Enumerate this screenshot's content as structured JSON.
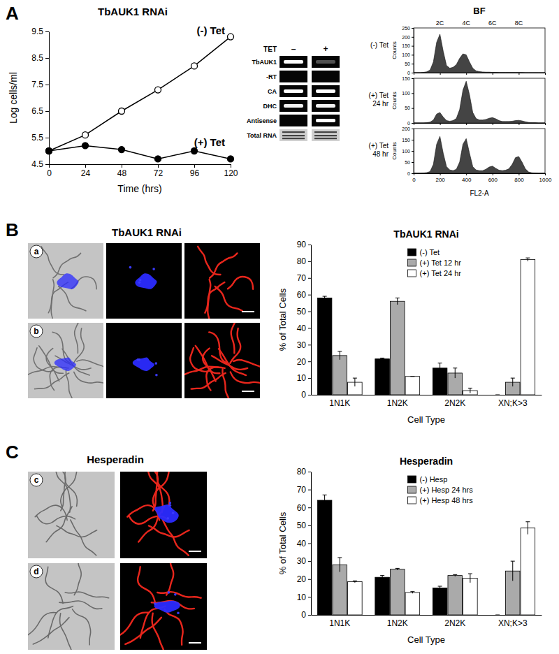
{
  "panels": [
    "A",
    "B",
    "C"
  ],
  "gel": {
    "header": "TET",
    "lanes": [
      "–",
      "+"
    ],
    "rows": [
      "TbAUK1",
      "-RT",
      "CA",
      "DHC",
      "Antisense",
      "Total RNA"
    ]
  },
  "micrographs": [
    {
      "title": "TbAUK1 RNAi",
      "labels": [
        "a",
        "b"
      ]
    },
    {
      "title": "Hesperadin",
      "labels": [
        "c",
        "d"
      ]
    }
  ],
  "chart_data": [
    {
      "type": "line",
      "title": "TbAUK1 RNAi",
      "xlabel": "Time (hrs)",
      "ylabel": "Log cells/ml",
      "x": [
        0,
        24,
        48,
        72,
        96,
        120
      ],
      "series": [
        {
          "name": "(-) Tet",
          "color": "#000000",
          "marker": "open-circle",
          "values": [
            5.0,
            5.6,
            6.5,
            7.3,
            8.2,
            9.3
          ]
        },
        {
          "name": "(+) Tet",
          "color": "#000000",
          "marker": "circle",
          "values": [
            5.0,
            5.2,
            5.05,
            4.7,
            5.0,
            4.7
          ]
        }
      ],
      "xlim": [
        0,
        120
      ],
      "xticks": [
        0,
        24,
        48,
        72,
        96,
        120
      ],
      "ylim": [
        4.5,
        9.5
      ],
      "yticks": [
        4.5,
        5.5,
        6.5,
        7.5,
        8.5,
        9.5
      ]
    },
    {
      "type": "area",
      "title": "BF",
      "ylabel": "Counts",
      "tick_labels": "y",
      "annotations": [
        {
          "text": "2C",
          "x": 200
        },
        {
          "text": "4C",
          "x": 400
        },
        {
          "text": "6C",
          "x": 600
        },
        {
          "text": "8C",
          "x": 800
        }
      ],
      "x": [
        0,
        25,
        50,
        75,
        100,
        125,
        150,
        175,
        200,
        225,
        250,
        275,
        300,
        325,
        350,
        375,
        400,
        425,
        450,
        475,
        500,
        525,
        550,
        575,
        600,
        625,
        650,
        675,
        700,
        725,
        750,
        775,
        800,
        825,
        850,
        875,
        900,
        925,
        950,
        975,
        1000
      ],
      "series": [
        {
          "name": "(-) Tet",
          "color": "#444444",
          "values": [
            0,
            0,
            0,
            2,
            5,
            15,
            60,
            170,
            215,
            120,
            40,
            25,
            30,
            45,
            80,
            105,
            100,
            60,
            25,
            10,
            6,
            4,
            3,
            3,
            2,
            2,
            1,
            1,
            1,
            1,
            1,
            1,
            1,
            1,
            0,
            0,
            0,
            0,
            0,
            0,
            0
          ]
        }
      ],
      "xlim": [
        0,
        1000
      ],
      "xticks": [
        0,
        200,
        400,
        600,
        800,
        1000
      ],
      "ylim": [
        0,
        250
      ],
      "yticks": [
        0,
        50,
        100,
        150,
        200,
        250
      ]
    },
    {
      "type": "area",
      "ylabel": "Counts",
      "tick_labels": "y",
      "x": [
        0,
        25,
        50,
        75,
        100,
        125,
        150,
        175,
        200,
        225,
        250,
        275,
        300,
        325,
        350,
        375,
        400,
        425,
        450,
        475,
        500,
        525,
        550,
        575,
        600,
        625,
        650,
        675,
        700,
        725,
        750,
        775,
        800,
        825,
        850,
        875,
        900,
        925,
        950,
        975,
        1000
      ],
      "series": [
        {
          "name": "(+) Tet 24 hr",
          "color": "#444444",
          "values": [
            0,
            0,
            0,
            0,
            1,
            3,
            10,
            30,
            35,
            20,
            8,
            6,
            8,
            15,
            45,
            110,
            140,
            95,
            35,
            15,
            10,
            10,
            12,
            16,
            18,
            14,
            8,
            5,
            5,
            5,
            6,
            8,
            9,
            7,
            4,
            2,
            1,
            1,
            0,
            0,
            0
          ]
        }
      ],
      "xlim": [
        0,
        1000
      ],
      "xticks": [
        0,
        200,
        400,
        600,
        800,
        1000
      ],
      "ylim": [
        0,
        150
      ],
      "yticks": [
        0,
        50,
        100,
        150
      ]
    },
    {
      "type": "area",
      "ylabel": "Counts",
      "xlabel": "FL2-A",
      "x": [
        0,
        25,
        50,
        75,
        100,
        125,
        150,
        175,
        200,
        225,
        250,
        275,
        300,
        325,
        350,
        375,
        400,
        425,
        450,
        475,
        500,
        525,
        550,
        575,
        600,
        625,
        650,
        675,
        700,
        725,
        750,
        775,
        800,
        825,
        850,
        875,
        900,
        925,
        950,
        975,
        1000
      ],
      "series": [
        {
          "name": "(+) Tet 48 hr",
          "color": "#444444",
          "values": [
            0,
            0,
            0,
            1,
            3,
            8,
            40,
            130,
            165,
            90,
            30,
            15,
            12,
            18,
            50,
            130,
            155,
            90,
            30,
            15,
            12,
            12,
            18,
            28,
            32,
            22,
            14,
            12,
            14,
            20,
            40,
            70,
            75,
            50,
            20,
            6,
            2,
            1,
            0,
            0,
            0
          ]
        }
      ],
      "xlim": [
        0,
        1000
      ],
      "xticks": [
        0,
        200,
        400,
        600,
        800,
        1000
      ],
      "ylim": [
        0,
        200
      ],
      "yticks": [
        0,
        50,
        100,
        150,
        200
      ]
    },
    {
      "type": "bar",
      "title": "TbAUK1 RNAi",
      "xlabel": "Cell Type",
      "ylabel": "% of Total Cells",
      "legend": "top",
      "categories": [
        "1N1K",
        "1N2K",
        "2N2K",
        "XN;K>3"
      ],
      "series": [
        {
          "name": "(-) Tet",
          "color": "#000000",
          "values": [
            58,
            21.5,
            16,
            0
          ],
          "errors": [
            1,
            0.5,
            3,
            0
          ]
        },
        {
          "name": "(+) Tet 12 hr",
          "color": "#aaaaaa",
          "values": [
            23.5,
            56,
            13,
            7.5
          ],
          "errors": [
            2.5,
            2,
            3,
            2.5
          ]
        },
        {
          "name": "(+) Tet 24 hr",
          "color": "#ffffff",
          "values": [
            7.5,
            11,
            2.5,
            81
          ],
          "errors": [
            2.5,
            0,
            1.5,
            1
          ]
        }
      ],
      "ylim": [
        0,
        90
      ],
      "yticks": [
        0,
        10,
        20,
        30,
        40,
        50,
        60,
        70,
        80,
        90
      ]
    },
    {
      "type": "bar",
      "title": "Hesperadin",
      "xlabel": "Cell Type",
      "ylabel": "% of Total Cells",
      "legend": "top",
      "categories": [
        "1N1K",
        "1N2K",
        "2N2K",
        "XN;K>3"
      ],
      "series": [
        {
          "name": "(-) Hesp",
          "color": "#000000",
          "values": [
            64,
            21,
            15,
            0
          ],
          "errors": [
            3,
            1,
            1,
            0
          ]
        },
        {
          "name": "(+) Hesp 24 hrs",
          "color": "#aaaaaa",
          "values": [
            28,
            25.5,
            22,
            24.5
          ],
          "errors": [
            4,
            0.5,
            0.5,
            5.5
          ]
        },
        {
          "name": "(+) Hesp 48 hrs",
          "color": "#ffffff",
          "values": [
            18.5,
            12.5,
            20.5,
            48.5
          ],
          "errors": [
            0.5,
            0.5,
            2.5,
            3.5
          ]
        }
      ],
      "ylim": [
        0,
        80
      ],
      "yticks": [
        0,
        10,
        20,
        30,
        40,
        50,
        60,
        70,
        80
      ]
    }
  ]
}
